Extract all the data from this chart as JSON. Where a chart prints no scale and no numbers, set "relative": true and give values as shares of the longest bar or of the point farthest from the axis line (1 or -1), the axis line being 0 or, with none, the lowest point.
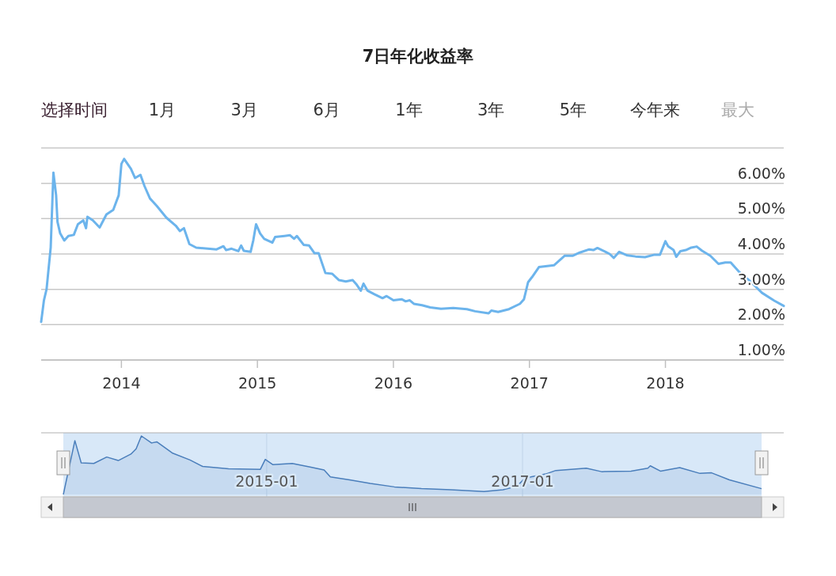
{
  "chart_data": [
    {
      "type": "line",
      "title": "7日年化收益率",
      "annotations": [
        "选择时间",
        "1月",
        "3月",
        "6月",
        "1年",
        "3年",
        "5年",
        "今年来",
        "最大"
      ],
      "color": "#6cb4ec",
      "grid": "y",
      "x": [
        2013.41,
        2013.43,
        2013.45,
        2013.48,
        2013.5,
        2013.52,
        2013.53,
        2013.55,
        2013.58,
        2013.61,
        2013.65,
        2013.68,
        2013.72,
        2013.74,
        2013.75,
        2013.79,
        2013.84,
        2013.89,
        2013.94,
        2013.98,
        2014.0,
        2014.02,
        2014.05,
        2014.07,
        2014.1,
        2014.14,
        2014.17,
        2014.21,
        2014.26,
        2014.33,
        2014.4,
        2014.43,
        2014.46,
        2014.5,
        2014.55,
        2014.7,
        2014.75,
        2014.77,
        2014.81,
        2014.86,
        2014.88,
        2014.9,
        2014.95,
        2014.97,
        2014.99,
        2015.02,
        2015.05,
        2015.11,
        2015.13,
        2015.2,
        2015.24,
        2015.27,
        2015.29,
        2015.34,
        2015.38,
        2015.42,
        2015.45,
        2015.5,
        2015.55,
        2015.6,
        2015.65,
        2015.7,
        2015.73,
        2015.76,
        2015.78,
        2015.81,
        2015.86,
        2015.92,
        2015.95,
        2016.0,
        2016.06,
        2016.09,
        2016.12,
        2016.15,
        2016.21,
        2016.27,
        2016.35,
        2016.44,
        2016.54,
        2016.6,
        2016.7,
        2016.72,
        2016.77,
        2016.85,
        2016.93,
        2016.96,
        2016.99,
        2017.02,
        2017.07,
        2017.18,
        2017.26,
        2017.32,
        2017.37,
        2017.44,
        2017.47,
        2017.5,
        2017.56,
        2017.59,
        2017.62,
        2017.66,
        2017.72,
        2017.78,
        2017.85,
        2017.92,
        2017.96,
        2017.98,
        2018.0,
        2018.02,
        2018.06,
        2018.08,
        2018.11,
        2018.15,
        2018.19,
        2018.23,
        2018.27,
        2018.33,
        2018.39,
        2018.44,
        2018.48,
        2018.54,
        2018.62,
        2018.71,
        2018.8,
        2018.87
      ],
      "values": [
        2.08,
        2.68,
        3.01,
        4.18,
        6.3,
        5.66,
        4.91,
        4.58,
        4.38,
        4.51,
        4.54,
        4.84,
        4.95,
        4.73,
        5.05,
        4.95,
        4.75,
        5.12,
        5.25,
        5.66,
        6.55,
        6.69,
        6.52,
        6.41,
        6.15,
        6.24,
        5.92,
        5.57,
        5.36,
        5.03,
        4.8,
        4.65,
        4.73,
        4.28,
        4.18,
        4.13,
        4.22,
        4.11,
        4.15,
        4.08,
        4.24,
        4.09,
        4.06,
        4.39,
        4.84,
        4.58,
        4.43,
        4.32,
        4.48,
        4.51,
        4.53,
        4.43,
        4.51,
        4.26,
        4.24,
        4.02,
        4.02,
        3.46,
        3.44,
        3.26,
        3.22,
        3.26,
        3.13,
        2.96,
        3.16,
        2.96,
        2.86,
        2.75,
        2.81,
        2.69,
        2.72,
        2.66,
        2.69,
        2.59,
        2.55,
        2.49,
        2.45,
        2.47,
        2.44,
        2.38,
        2.32,
        2.4,
        2.36,
        2.44,
        2.59,
        2.72,
        3.2,
        3.35,
        3.63,
        3.68,
        3.95,
        3.95,
        4.04,
        4.13,
        4.11,
        4.17,
        4.06,
        4.0,
        3.89,
        4.06,
        3.96,
        3.93,
        3.91,
        3.98,
        3.98,
        4.17,
        4.36,
        4.22,
        4.11,
        3.92,
        4.08,
        4.11,
        4.18,
        4.21,
        4.09,
        3.95,
        3.72,
        3.76,
        3.76,
        3.5,
        3.24,
        2.9,
        2.68,
        2.53
      ],
      "xlim": [
        2013.41,
        2018.87
      ],
      "xticks": [
        2014,
        2015,
        2016,
        2017,
        2018
      ],
      "ylim": [
        1,
        7
      ],
      "yticks": [
        {
          "value": 1,
          "label": "1.00%"
        },
        {
          "value": 2,
          "label": "2.00%"
        },
        {
          "value": 3,
          "label": "3.00%"
        },
        {
          "value": 4,
          "label": "4.00%"
        },
        {
          "value": 5,
          "label": "5.00%"
        },
        {
          "value": 6,
          "label": "6.00%"
        },
        {
          "value": 7,
          "label": null
        }
      ]
    },
    {
      "type": "area",
      "relative": true,
      "color": "#4a7ebb",
      "grid": "x",
      "x": [
        "2013-05-30",
        "2013-07-02",
        "2013-07-20",
        "2013-08-25",
        "2013-10-01",
        "2013-11-03",
        "2013-12-09",
        "2013-12-24",
        "2014-01-08",
        "2014-02-06",
        "2014-02-21",
        "2014-04-06",
        "2014-05-27",
        "2014-07-02",
        "2014-09-14",
        "2014-12-14",
        "2014-12-28",
        "2015-01-19",
        "2015-03-15",
        "2015-05-05",
        "2015-06-14",
        "2015-07-02",
        "2015-08-26",
        "2015-10-24",
        "2016-01-01",
        "2016-03-18",
        "2016-06-10",
        "2016-09-13",
        "2016-11-06",
        "2016-12-16",
        "2017-01-08",
        "2017-03-08",
        "2017-04-06",
        "2017-07-02",
        "2017-08-15",
        "2017-11-07",
        "2017-12-25",
        "2018-01-01",
        "2018-01-30",
        "2018-03-26",
        "2018-05-23",
        "2018-06-25",
        "2018-08-15",
        "2018-11-15"
      ],
      "values": [
        0,
        0.92,
        0.54,
        0.53,
        0.64,
        0.58,
        0.69,
        0.78,
        1,
        0.88,
        0.9,
        0.71,
        0.59,
        0.48,
        0.44,
        0.43,
        0.6,
        0.51,
        0.53,
        0.47,
        0.42,
        0.3,
        0.25,
        0.19,
        0.13,
        0.1,
        0.08,
        0.05,
        0.08,
        0.14,
        0.28,
        0.35,
        0.41,
        0.45,
        0.39,
        0.4,
        0.45,
        0.49,
        0.4,
        0.46,
        0.36,
        0.37,
        0.25,
        0.1
      ],
      "xlim": [
        "2013-05-30",
        "2018-11-15"
      ],
      "xticks": [
        {
          "value": "2015-01-01",
          "label": "2015-01"
        },
        {
          "value": "2017-01-01",
          "label": "2017-01"
        }
      ]
    }
  ]
}
